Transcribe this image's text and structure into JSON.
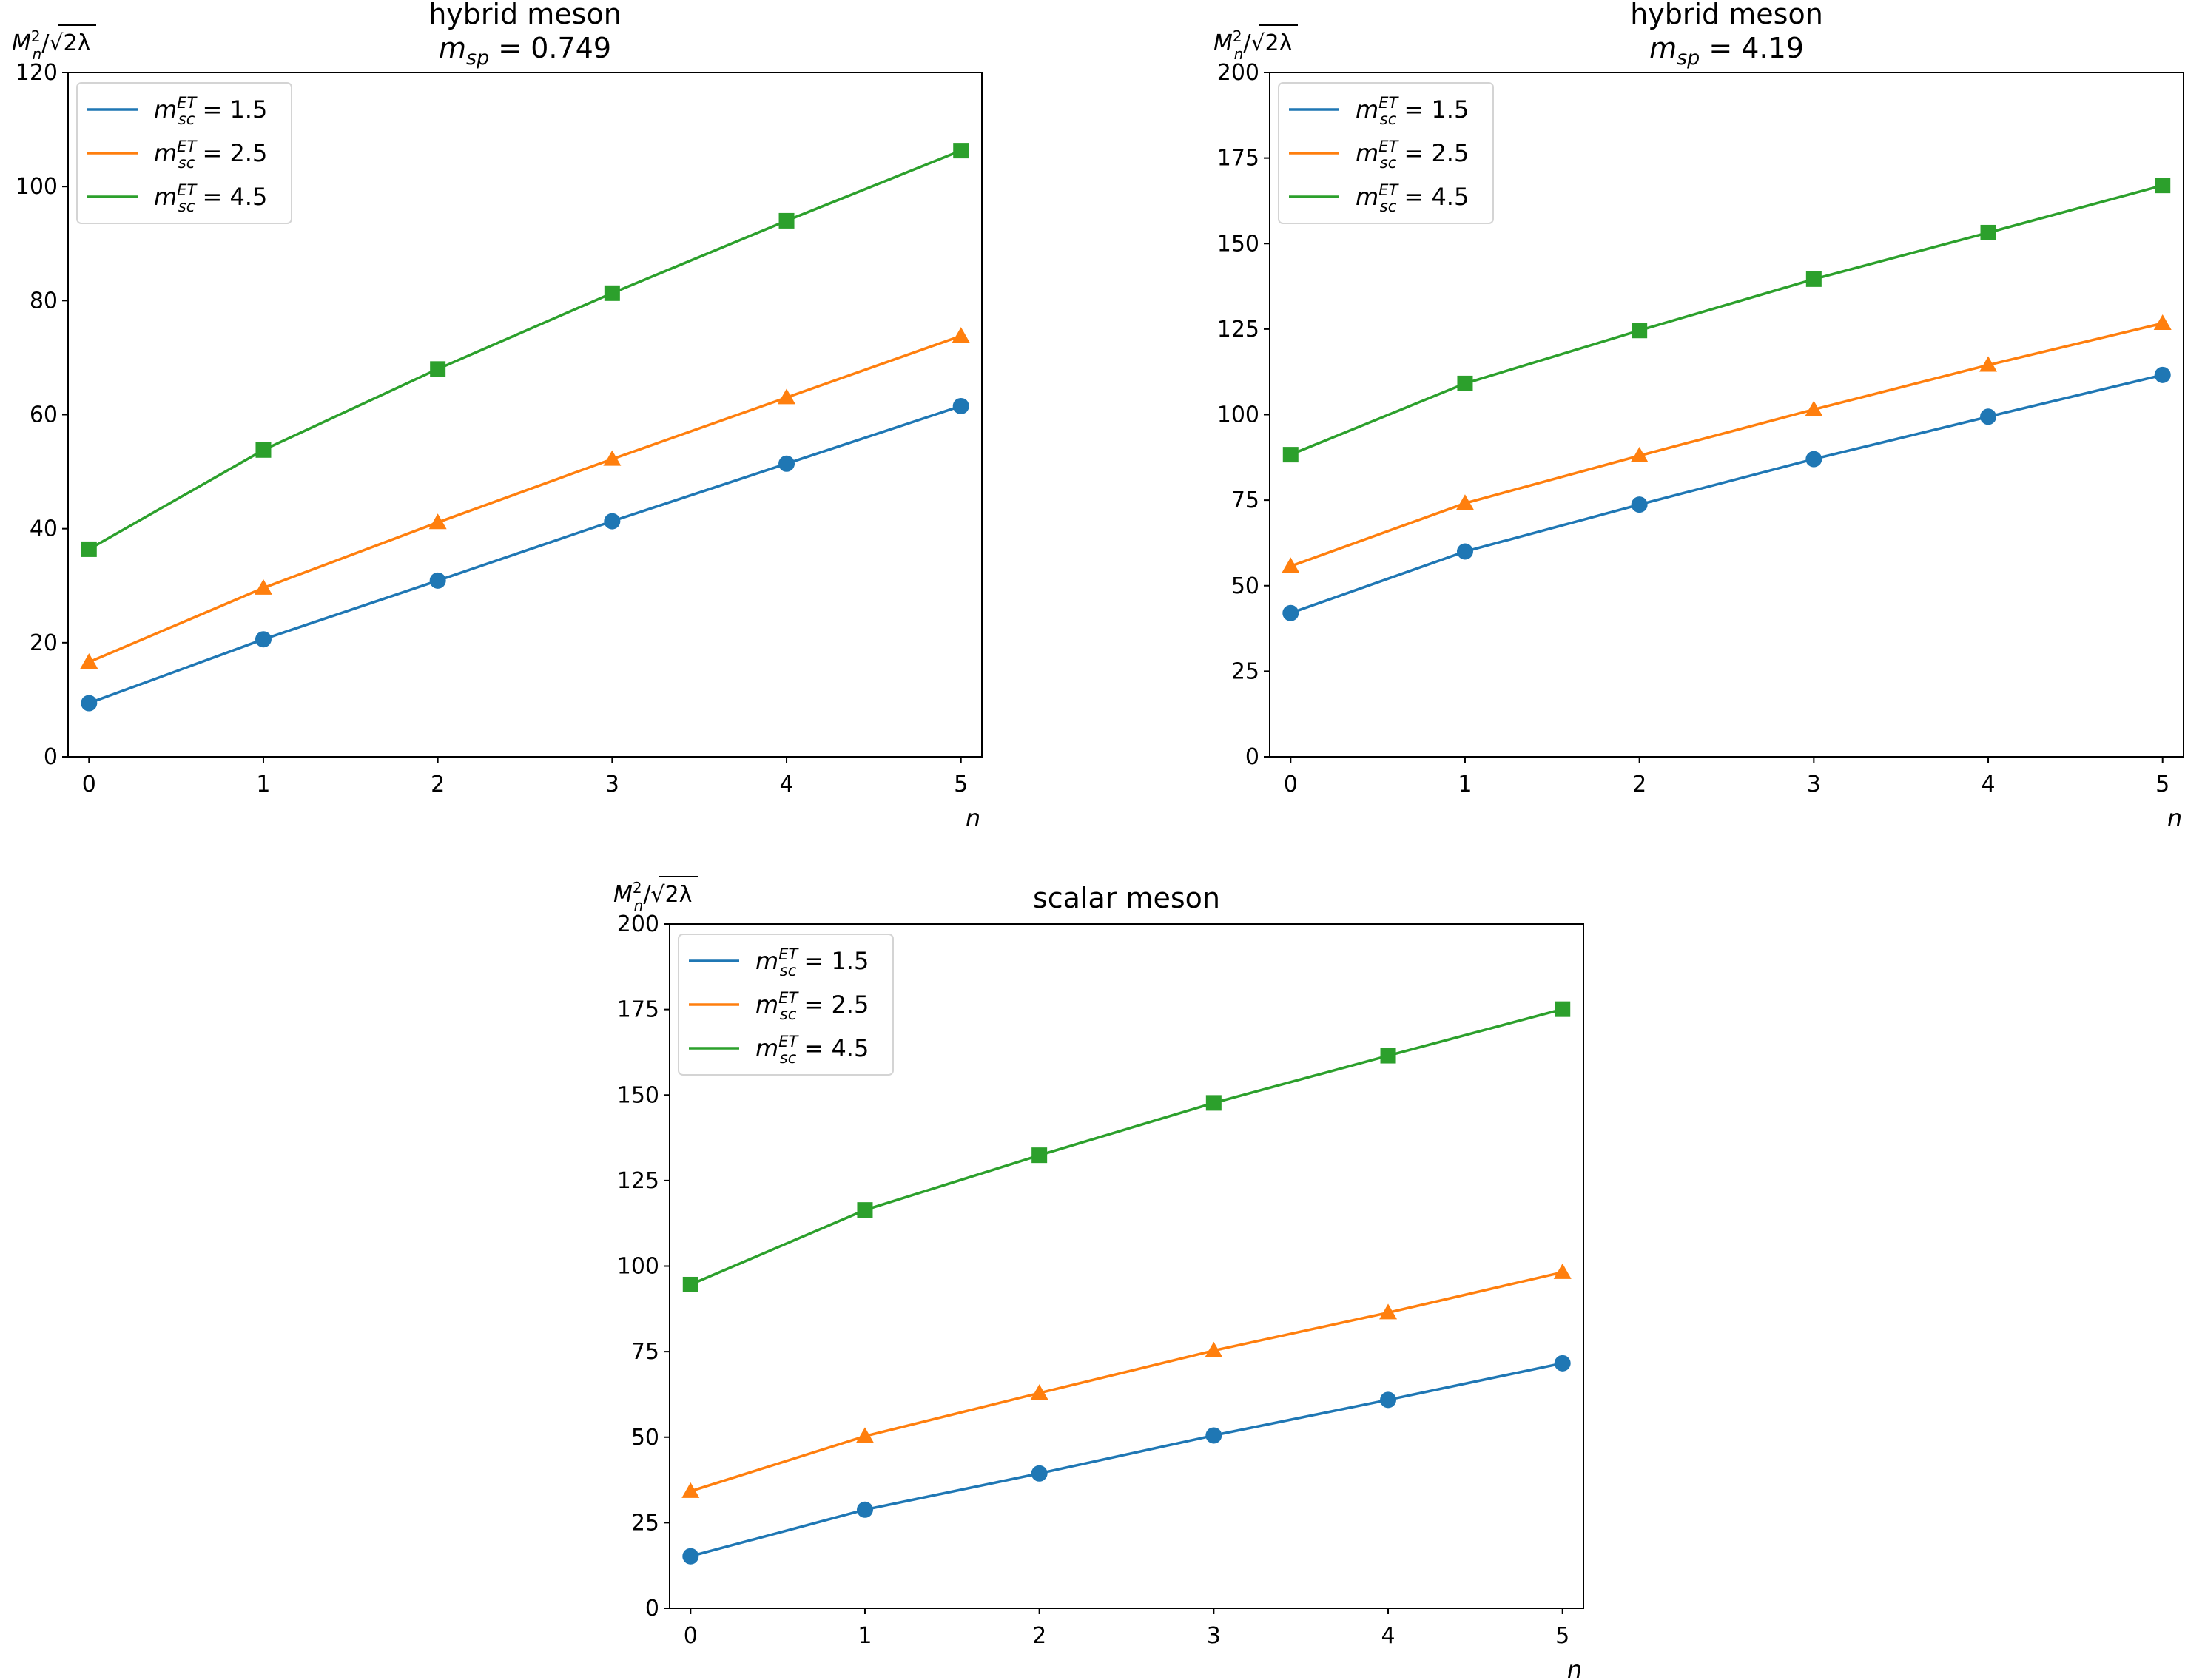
{
  "chart_data": [
    {
      "type": "line",
      "title": "hybrid meson",
      "subtitle": {
        "symbol": "m",
        "subscript": "sp",
        "value": "= 0.749"
      },
      "xlabel": "n",
      "ylabel": {
        "symbol": "M",
        "superscript": "2",
        "subscript": "n",
        "rest": "/√2λ"
      },
      "x": [
        0,
        1,
        2,
        3,
        4,
        5
      ],
      "xticks": [
        "0",
        "1",
        "2",
        "3",
        "4",
        "5"
      ],
      "xlim": [
        -0.12,
        5.12
      ],
      "ylim": [
        0,
        120
      ],
      "yticks": [
        "0",
        "20",
        "40",
        "60",
        "80",
        "100",
        "120"
      ],
      "legend_position": "upper-left",
      "series": [
        {
          "name": {
            "symbol": "m",
            "subscript": "sc",
            "superscript": "ET",
            "value": "= 1.5"
          },
          "color": "#1f77b4",
          "marker": "circle",
          "values": [
            9.4,
            20.6,
            30.9,
            41.3,
            51.4,
            61.5
          ]
        },
        {
          "name": {
            "symbol": "m",
            "subscript": "sc",
            "superscript": "ET",
            "value": "= 2.5"
          },
          "color": "#ff7f0e",
          "marker": "triangle",
          "values": [
            16.6,
            29.6,
            41.1,
            52.2,
            63.0,
            73.8
          ]
        },
        {
          "name": {
            "symbol": "m",
            "subscript": "sc",
            "superscript": "ET",
            "value": "= 4.5"
          },
          "color": "#2ca02c",
          "marker": "square",
          "values": [
            36.4,
            53.8,
            68.0,
            81.3,
            94.0,
            106.3
          ]
        }
      ]
    },
    {
      "type": "line",
      "title": "hybrid meson",
      "subtitle": {
        "symbol": "m",
        "subscript": "sp",
        "value": "= 4.19"
      },
      "xlabel": "n",
      "ylabel": {
        "symbol": "M",
        "superscript": "2",
        "subscript": "n",
        "rest": "/√2λ"
      },
      "x": [
        0,
        1,
        2,
        3,
        4,
        5
      ],
      "xticks": [
        "0",
        "1",
        "2",
        "3",
        "4",
        "5"
      ],
      "xlim": [
        -0.12,
        5.12
      ],
      "ylim": [
        0,
        200
      ],
      "yticks": [
        "0",
        "25",
        "50",
        "75",
        "100",
        "125",
        "150",
        "175",
        "200"
      ],
      "legend_position": "upper-left",
      "series": [
        {
          "name": {
            "symbol": "m",
            "subscript": "sc",
            "superscript": "ET",
            "value": "= 1.5"
          },
          "color": "#1f77b4",
          "marker": "circle",
          "values": [
            42.0,
            60.0,
            73.7,
            87.0,
            99.4,
            111.6
          ]
        },
        {
          "name": {
            "symbol": "m",
            "subscript": "sc",
            "superscript": "ET",
            "value": "= 2.5"
          },
          "color": "#ff7f0e",
          "marker": "triangle",
          "values": [
            55.7,
            74.1,
            88.0,
            101.5,
            114.5,
            126.7
          ]
        },
        {
          "name": {
            "symbol": "m",
            "subscript": "sc",
            "superscript": "ET",
            "value": "= 4.5"
          },
          "color": "#2ca02c",
          "marker": "square",
          "values": [
            88.3,
            109.1,
            124.6,
            139.6,
            153.2,
            167.0
          ]
        }
      ]
    },
    {
      "type": "line",
      "title": "scalar meson",
      "xlabel": "n",
      "ylabel": {
        "symbol": "M",
        "superscript": "2",
        "subscript": "n",
        "rest": "/√2λ"
      },
      "x": [
        0,
        1,
        2,
        3,
        4,
        5
      ],
      "xticks": [
        "0",
        "1",
        "2",
        "3",
        "4",
        "5"
      ],
      "xlim": [
        -0.12,
        5.12
      ],
      "ylim": [
        0,
        200
      ],
      "yticks": [
        "0",
        "25",
        "50",
        "75",
        "100",
        "125",
        "150",
        "175",
        "200"
      ],
      "legend_position": "upper-left",
      "series": [
        {
          "name": {
            "symbol": "m",
            "subscript": "sc",
            "superscript": "ET",
            "value": "= 1.5"
          },
          "color": "#1f77b4",
          "marker": "circle",
          "values": [
            15.2,
            28.8,
            39.4,
            50.5,
            60.9,
            71.6
          ]
        },
        {
          "name": {
            "symbol": "m",
            "subscript": "sc",
            "superscript": "ET",
            "value": "= 2.5"
          },
          "color": "#ff7f0e",
          "marker": "triangle",
          "values": [
            34.2,
            50.3,
            62.9,
            75.3,
            86.4,
            98.2
          ]
        },
        {
          "name": {
            "symbol": "m",
            "subscript": "sc",
            "superscript": "ET",
            "value": "= 4.5"
          },
          "color": "#2ca02c",
          "marker": "square",
          "values": [
            94.6,
            116.4,
            132.4,
            147.7,
            161.5,
            175.1
          ]
        }
      ]
    }
  ]
}
